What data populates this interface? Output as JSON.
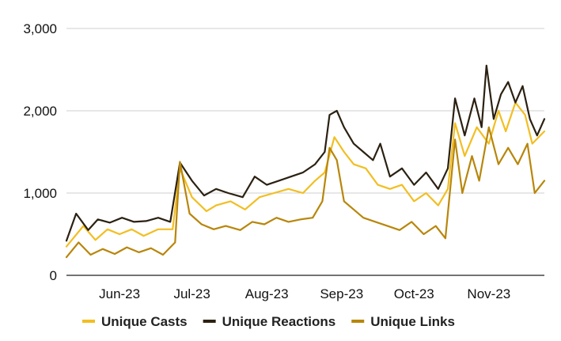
{
  "chart_data": {
    "type": "line",
    "title": "",
    "xlabel": "",
    "ylabel": "",
    "ylim": [
      0,
      3000
    ],
    "y_ticks": [
      0,
      1000,
      2000,
      3000
    ],
    "y_tick_labels": [
      "0",
      "1,000",
      "2,000",
      "3,000"
    ],
    "x_range": [
      "2023-05-24",
      "2023-12-08"
    ],
    "x_ticks": [
      {
        "date": "2023-06-15",
        "label": "Jun-23"
      },
      {
        "date": "2023-07-15",
        "label": "Jul-23"
      },
      {
        "date": "2023-08-15",
        "label": "Aug-23"
      },
      {
        "date": "2023-09-15",
        "label": "Sep-23"
      },
      {
        "date": "2023-10-15",
        "label": "Oct-23"
      },
      {
        "date": "2023-11-15",
        "label": "Nov-23"
      }
    ],
    "grid": true,
    "legend_position": "bottom",
    "series": [
      {
        "name": "Unique Casts",
        "color": "#F2BE22",
        "points": [
          [
            "2023-05-24",
            350
          ],
          [
            "2023-05-31",
            600
          ],
          [
            "2023-06-05",
            430
          ],
          [
            "2023-06-10",
            560
          ],
          [
            "2023-06-15",
            500
          ],
          [
            "2023-06-20",
            560
          ],
          [
            "2023-06-25",
            480
          ],
          [
            "2023-07-01",
            560
          ],
          [
            "2023-07-07",
            560
          ],
          [
            "2023-07-10",
            1300
          ],
          [
            "2023-07-15",
            950
          ],
          [
            "2023-07-21",
            780
          ],
          [
            "2023-07-25",
            850
          ],
          [
            "2023-07-31",
            900
          ],
          [
            "2023-08-06",
            800
          ],
          [
            "2023-08-12",
            950
          ],
          [
            "2023-08-18",
            1000
          ],
          [
            "2023-08-24",
            1050
          ],
          [
            "2023-08-30",
            1000
          ],
          [
            "2023-09-04",
            1150
          ],
          [
            "2023-09-08",
            1250
          ],
          [
            "2023-09-12",
            1680
          ],
          [
            "2023-09-16",
            1500
          ],
          [
            "2023-09-20",
            1350
          ],
          [
            "2023-09-25",
            1300
          ],
          [
            "2023-09-30",
            1100
          ],
          [
            "2023-10-05",
            1050
          ],
          [
            "2023-10-10",
            1100
          ],
          [
            "2023-10-15",
            900
          ],
          [
            "2023-10-20",
            1000
          ],
          [
            "2023-10-25",
            850
          ],
          [
            "2023-10-29",
            1050
          ],
          [
            "2023-11-01",
            1850
          ],
          [
            "2023-11-05",
            1450
          ],
          [
            "2023-11-10",
            1800
          ],
          [
            "2023-11-15",
            1600
          ],
          [
            "2023-11-19",
            2000
          ],
          [
            "2023-11-22",
            1750
          ],
          [
            "2023-11-26",
            2100
          ],
          [
            "2023-11-30",
            1950
          ],
          [
            "2023-12-03",
            1600
          ],
          [
            "2023-12-08",
            1750
          ]
        ]
      },
      {
        "name": "Unique Reactions",
        "color": "#2B2112",
        "points": [
          [
            "2023-05-24",
            420
          ],
          [
            "2023-05-28",
            750
          ],
          [
            "2023-06-02",
            550
          ],
          [
            "2023-06-06",
            680
          ],
          [
            "2023-06-11",
            640
          ],
          [
            "2023-06-16",
            700
          ],
          [
            "2023-06-21",
            650
          ],
          [
            "2023-06-26",
            660
          ],
          [
            "2023-07-01",
            700
          ],
          [
            "2023-07-06",
            650
          ],
          [
            "2023-07-10",
            1370
          ],
          [
            "2023-07-15",
            1150
          ],
          [
            "2023-07-20",
            970
          ],
          [
            "2023-07-25",
            1050
          ],
          [
            "2023-07-30",
            1000
          ],
          [
            "2023-08-05",
            950
          ],
          [
            "2023-08-10",
            1200
          ],
          [
            "2023-08-15",
            1100
          ],
          [
            "2023-08-20",
            1150
          ],
          [
            "2023-08-25",
            1200
          ],
          [
            "2023-08-30",
            1250
          ],
          [
            "2023-09-04",
            1350
          ],
          [
            "2023-09-08",
            1500
          ],
          [
            "2023-09-10",
            1950
          ],
          [
            "2023-09-13",
            2000
          ],
          [
            "2023-09-16",
            1800
          ],
          [
            "2023-09-20",
            1600
          ],
          [
            "2023-09-24",
            1500
          ],
          [
            "2023-09-28",
            1400
          ],
          [
            "2023-10-01",
            1600
          ],
          [
            "2023-10-05",
            1200
          ],
          [
            "2023-10-10",
            1300
          ],
          [
            "2023-10-15",
            1100
          ],
          [
            "2023-10-20",
            1250
          ],
          [
            "2023-10-25",
            1050
          ],
          [
            "2023-10-29",
            1300
          ],
          [
            "2023-11-01",
            2150
          ],
          [
            "2023-11-05",
            1700
          ],
          [
            "2023-11-09",
            2150
          ],
          [
            "2023-11-12",
            1800
          ],
          [
            "2023-11-14",
            2550
          ],
          [
            "2023-11-17",
            1900
          ],
          [
            "2023-11-20",
            2200
          ],
          [
            "2023-11-23",
            2350
          ],
          [
            "2023-11-26",
            2100
          ],
          [
            "2023-11-29",
            2300
          ],
          [
            "2023-12-02",
            1900
          ],
          [
            "2023-12-05",
            1700
          ],
          [
            "2023-12-08",
            1900
          ]
        ]
      },
      {
        "name": "Unique Links",
        "color": "#B8860B",
        "points": [
          [
            "2023-05-24",
            220
          ],
          [
            "2023-05-29",
            400
          ],
          [
            "2023-06-03",
            250
          ],
          [
            "2023-06-08",
            320
          ],
          [
            "2023-06-13",
            260
          ],
          [
            "2023-06-18",
            340
          ],
          [
            "2023-06-23",
            280
          ],
          [
            "2023-06-28",
            330
          ],
          [
            "2023-07-03",
            250
          ],
          [
            "2023-07-08",
            400
          ],
          [
            "2023-07-10",
            1380
          ],
          [
            "2023-07-14",
            750
          ],
          [
            "2023-07-19",
            620
          ],
          [
            "2023-07-24",
            560
          ],
          [
            "2023-07-29",
            600
          ],
          [
            "2023-08-04",
            550
          ],
          [
            "2023-08-09",
            650
          ],
          [
            "2023-08-14",
            620
          ],
          [
            "2023-08-19",
            700
          ],
          [
            "2023-08-24",
            650
          ],
          [
            "2023-08-29",
            680
          ],
          [
            "2023-09-03",
            700
          ],
          [
            "2023-09-07",
            900
          ],
          [
            "2023-09-10",
            1550
          ],
          [
            "2023-09-13",
            1400
          ],
          [
            "2023-09-16",
            900
          ],
          [
            "2023-09-20",
            800
          ],
          [
            "2023-09-24",
            700
          ],
          [
            "2023-09-29",
            650
          ],
          [
            "2023-10-04",
            600
          ],
          [
            "2023-10-09",
            550
          ],
          [
            "2023-10-14",
            650
          ],
          [
            "2023-10-19",
            500
          ],
          [
            "2023-10-24",
            600
          ],
          [
            "2023-10-28",
            450
          ],
          [
            "2023-11-01",
            1650
          ],
          [
            "2023-11-04",
            1000
          ],
          [
            "2023-11-08",
            1450
          ],
          [
            "2023-11-11",
            1150
          ],
          [
            "2023-11-15",
            1800
          ],
          [
            "2023-11-19",
            1350
          ],
          [
            "2023-11-23",
            1550
          ],
          [
            "2023-11-27",
            1350
          ],
          [
            "2023-12-01",
            1600
          ],
          [
            "2023-12-04",
            1000
          ],
          [
            "2023-12-08",
            1150
          ]
        ]
      }
    ]
  }
}
